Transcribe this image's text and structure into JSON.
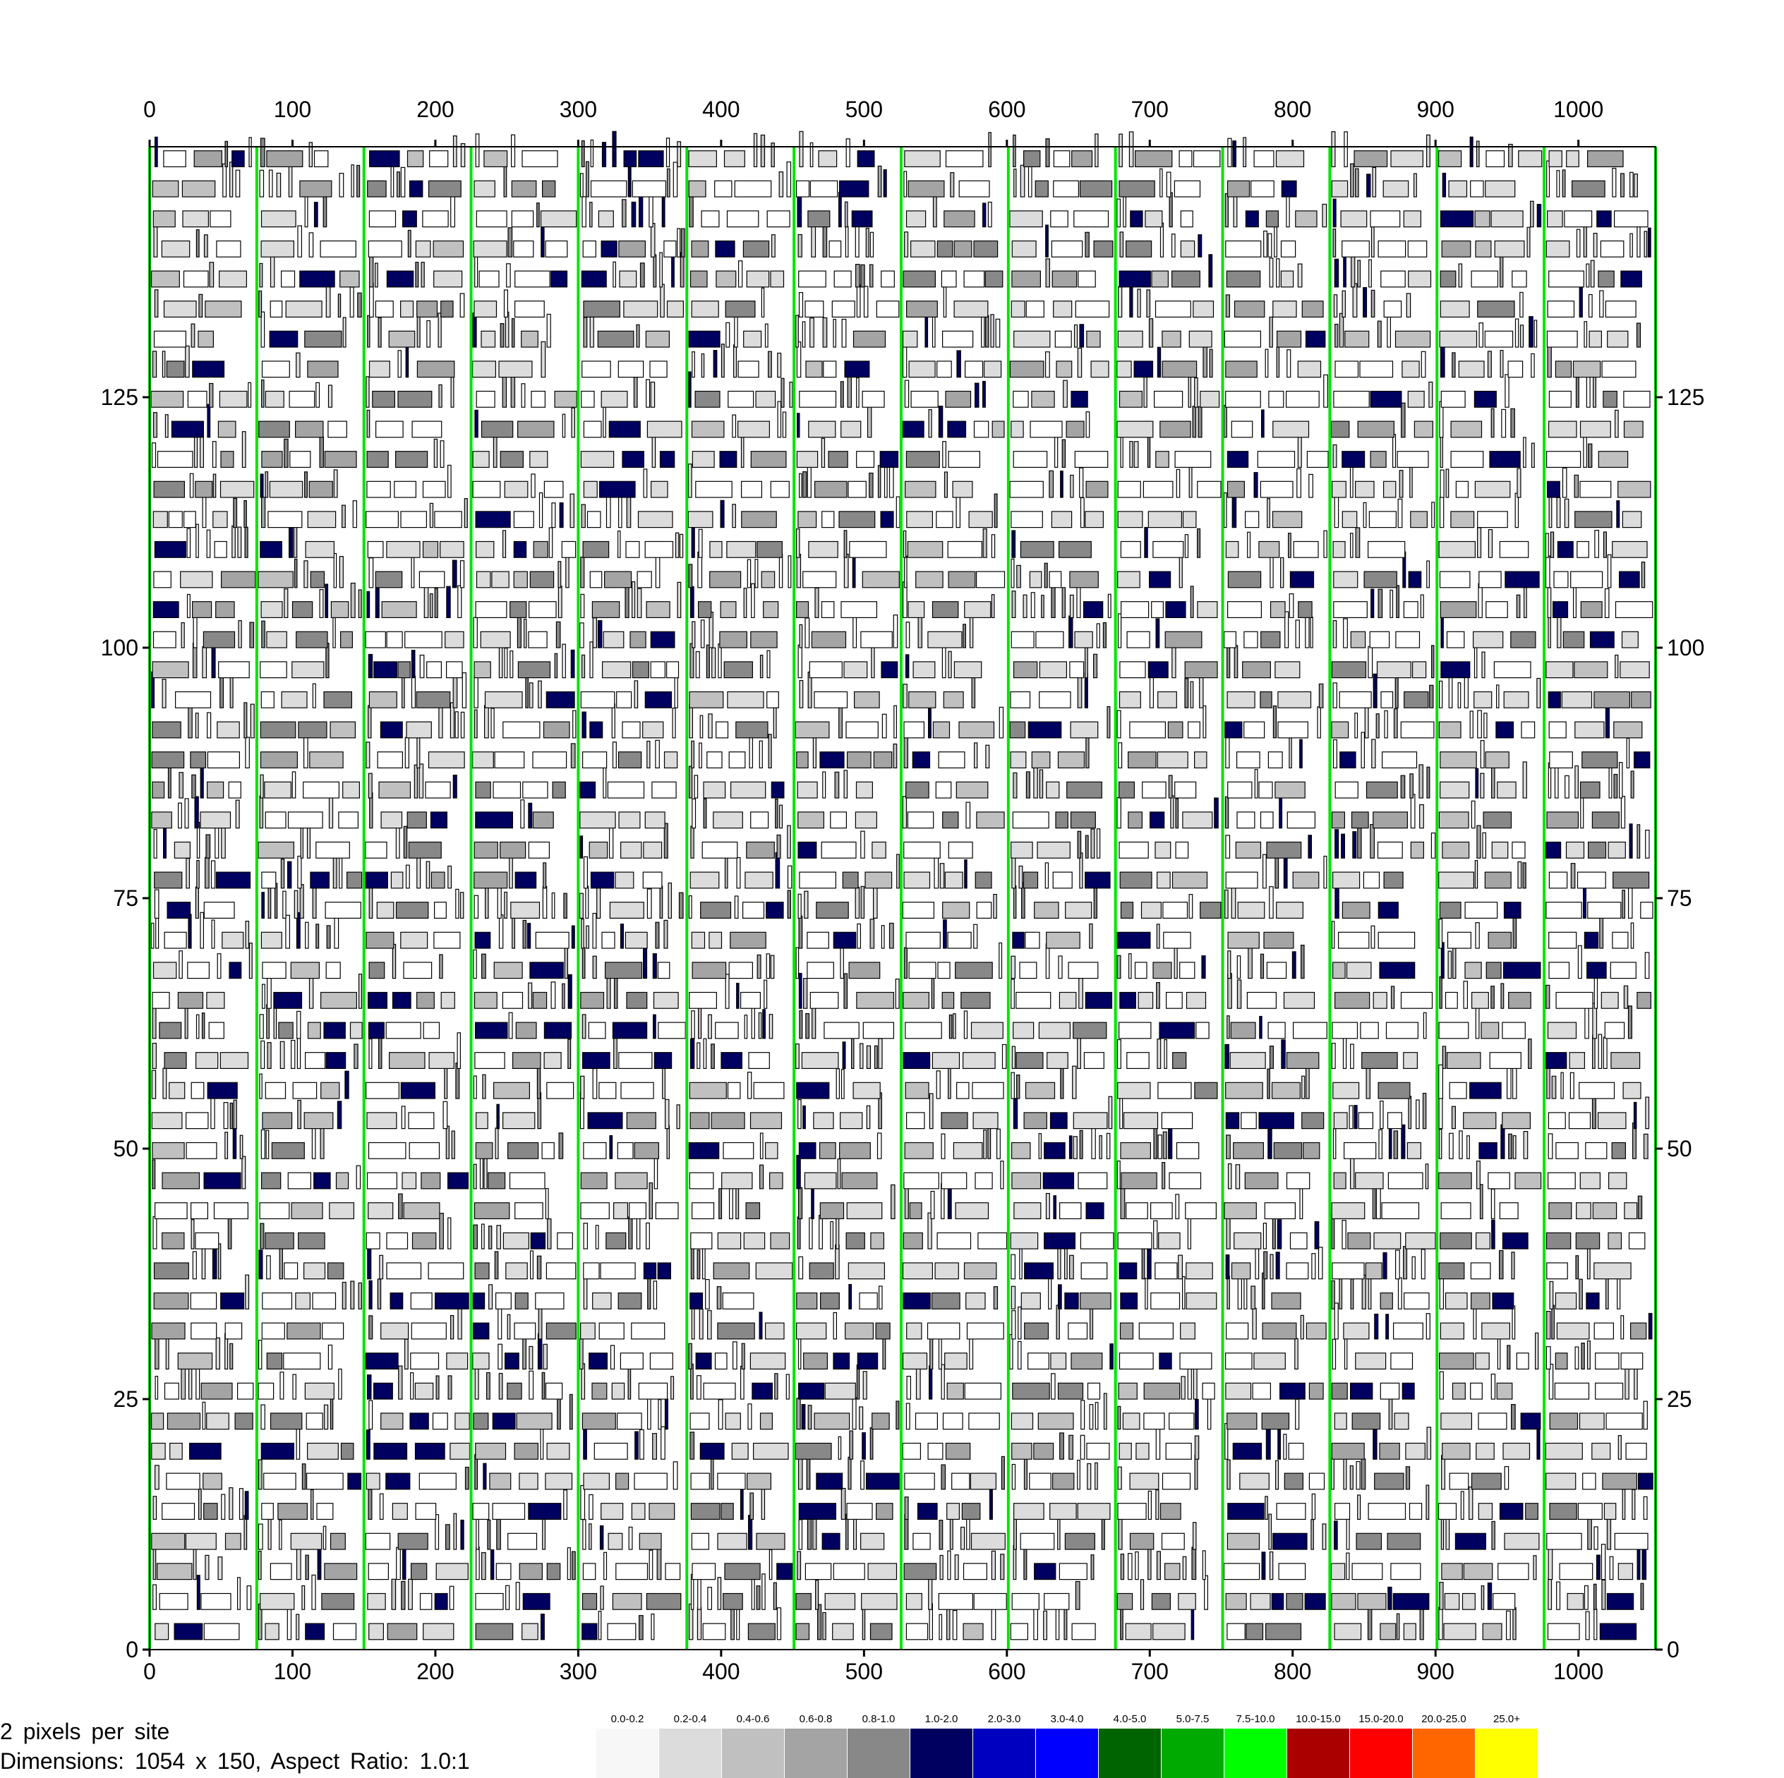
{
  "chart_data": {
    "type": "heatmap",
    "title": "",
    "x_ticks": [
      "0",
      "100",
      "200",
      "300",
      "400",
      "500",
      "600",
      "700",
      "800",
      "900",
      "1000"
    ],
    "y_ticks": [
      "0",
      "25",
      "50",
      "75",
      "100",
      "125"
    ],
    "x_range": [
      0,
      1054
    ],
    "y_range": [
      0,
      150
    ],
    "grid": false,
    "region_boundaries_x": [
      0,
      75,
      150,
      225,
      300,
      376,
      451,
      526,
      601,
      676,
      751,
      826,
      901,
      976,
      1054
    ],
    "legend": {
      "placement": "bottom-center",
      "items": [
        {
          "label": "0.0-0.2",
          "color": "#f7f7f7"
        },
        {
          "label": "0.2-0.4",
          "color": "#dcdcdc"
        },
        {
          "label": "0.4-0.6",
          "color": "#c0c0c0"
        },
        {
          "label": "0.6-0.8",
          "color": "#a4a4a4"
        },
        {
          "label": "0.8-1.0",
          "color": "#888888"
        },
        {
          "label": "1.0-2.0",
          "color": "#000060"
        },
        {
          "label": "2.0-3.0",
          "color": "#0000c0"
        },
        {
          "label": "3.0-4.0",
          "color": "#0000ff"
        },
        {
          "label": "4.0-5.0",
          "color": "#006400"
        },
        {
          "label": "5.0-7.5",
          "color": "#00aa00"
        },
        {
          "label": "7.5-10.0",
          "color": "#00ff00"
        },
        {
          "label": "10.0-15.0",
          "color": "#aa0000"
        },
        {
          "label": "15.0-20.0",
          "color": "#ff0000"
        },
        {
          "label": "20.0-25.0",
          "color": "#ff6600"
        },
        {
          "label": "25.0+",
          "color": "#ffff00"
        }
      ]
    }
  },
  "footer": {
    "pixels_per_site": "2 pixels per site",
    "dimensions": "Dimensions: 1054 x 150, Aspect Ratio: 1.0:1"
  },
  "colors": {
    "region_line": "#00e600",
    "frame": "#000000"
  }
}
